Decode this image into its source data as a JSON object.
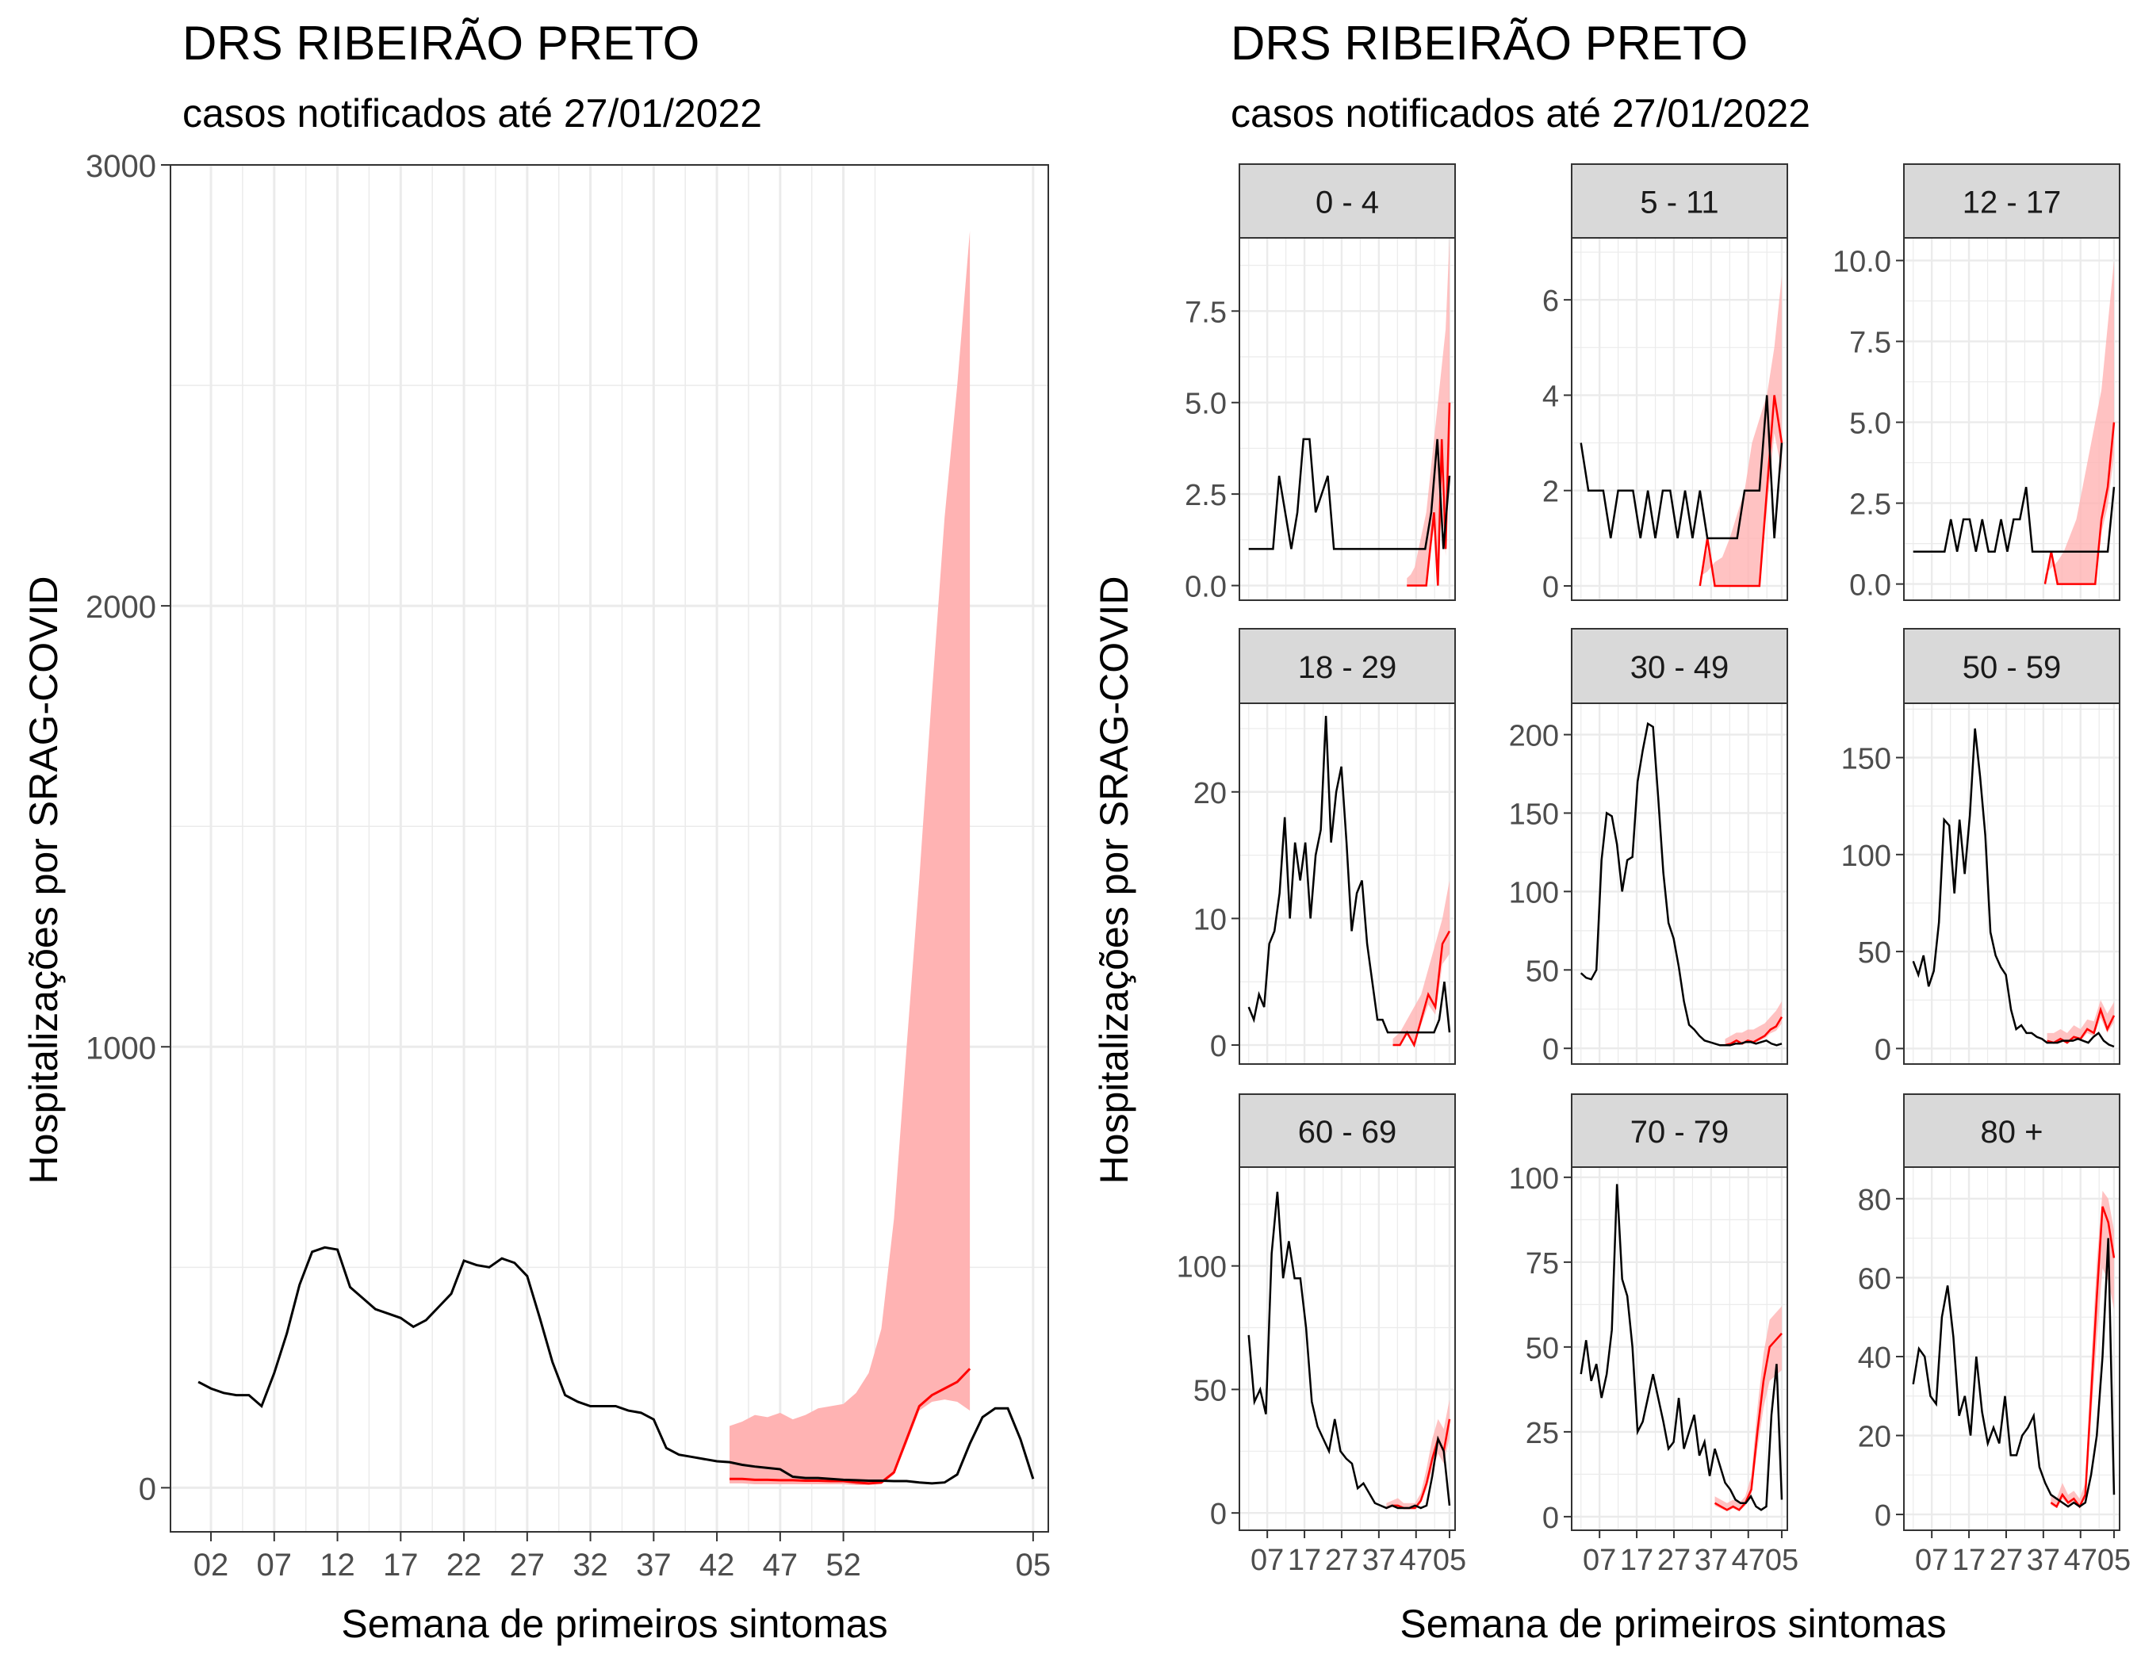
{
  "left": {
    "title": "DRS RIBEIRÃO PRETO",
    "subtitle": "casos notificados até 27/01/2022",
    "ylabel": "Hospitalizações por SRAG-COVID",
    "xlabel": "Semana de primeiros sintomas"
  },
  "right": {
    "title": "DRS RIBEIRÃO PRETO",
    "subtitle": "casos notificados até 27/01/2022",
    "ylabel": "Hospitalizações por SRAG-COVID",
    "xlabel": "Semana de primeiros sintomas"
  },
  "colors": {
    "observed": "#000000",
    "estimate": "#ff0000",
    "band": "#ffb3b3",
    "strip": "#d9d9d9",
    "grid": "#ebebeb"
  },
  "chart_data": [
    {
      "type": "line",
      "title": "DRS RIBEIRÃO PRETO",
      "subtitle": "casos notificados até 27/01/2022",
      "xlabel": "Semana de primeiros sintomas",
      "ylabel": "Hospitalizações por SRAG-COVID",
      "x_tick_labels": [
        "02",
        "07",
        "12",
        "17",
        "22",
        "27",
        "32",
        "37",
        "42",
        "47",
        "52",
        "05"
      ],
      "ylim": [
        -100,
        3000
      ],
      "yticks": [
        0,
        1000,
        2000,
        3000
      ],
      "grid": true,
      "series": [
        {
          "role": "observed",
          "values": [
            240,
            225,
            215,
            210,
            210,
            185,
            260,
            350,
            460,
            535,
            545,
            540,
            455,
            430,
            405,
            395,
            385,
            365,
            380,
            410,
            440,
            515,
            505,
            500,
            520,
            510,
            480,
            385,
            285,
            210,
            195,
            185,
            185,
            185,
            175,
            170,
            155,
            90,
            75,
            70,
            65,
            60,
            58,
            52,
            48,
            45,
            42,
            25,
            22,
            22,
            20,
            18,
            17,
            16,
            16,
            15,
            15,
            12,
            10,
            12,
            30,
            100,
            160,
            180,
            180,
            110,
            20
          ]
        },
        {
          "role": "estimate",
          "start_index": 42,
          "values": [
            20,
            20,
            18,
            18,
            17,
            17,
            16,
            16,
            15,
            15,
            12,
            10,
            12,
            35,
            110,
            185,
            210,
            225,
            240,
            270
          ]
        },
        {
          "role": "band_upper",
          "start_index": 42,
          "values": [
            140,
            150,
            165,
            160,
            170,
            155,
            165,
            180,
            185,
            190,
            215,
            260,
            360,
            610,
            1000,
            1380,
            1800,
            2200,
            2500,
            2850
          ]
        },
        {
          "role": "band_lower",
          "start_index": 42,
          "values": [
            10,
            10,
            8,
            8,
            8,
            8,
            8,
            8,
            8,
            8,
            6,
            6,
            8,
            30,
            100,
            175,
            195,
            200,
            195,
            175
          ]
        }
      ]
    },
    {
      "type": "line",
      "facets": [
        {
          "label": "0 - 4",
          "ylim": [
            -0.4,
            9.5
          ],
          "yticks": [
            0.0,
            2.5,
            5.0,
            7.5
          ],
          "ytick_labels": [
            "0.0",
            "2.5",
            "5.0",
            "7.5"
          ],
          "observed": [
            1,
            1,
            1,
            1,
            1,
            3,
            2,
            1,
            2,
            4,
            4,
            2,
            2.5,
            3,
            1,
            1,
            1,
            1,
            1,
            1,
            1,
            1,
            1,
            1,
            1,
            1,
            1,
            1,
            1,
            1,
            2,
            4,
            1,
            3
          ],
          "estimate_start": 26,
          "estimate": [
            0,
            0,
            0,
            0,
            0,
            0,
            1,
            2,
            0,
            4,
            1,
            5
          ],
          "band_upper": [
            0.2,
            0.3,
            0.5,
            1,
            1.5,
            2,
            3,
            4,
            5,
            6,
            7,
            9.5
          ]
        },
        {
          "label": "5 - 11",
          "ylim": [
            -0.3,
            7.3
          ],
          "yticks": [
            0,
            2,
            4,
            6
          ],
          "ytick_labels": [
            "0",
            "2",
            "4",
            "6"
          ],
          "observed": [
            3,
            2,
            2,
            2,
            1,
            2,
            2,
            2,
            1,
            2,
            1,
            2,
            2,
            1,
            2,
            1,
            2,
            1,
            1,
            1,
            1,
            1,
            2,
            2,
            2,
            4,
            1,
            3
          ],
          "estimate_start": 16,
          "estimate": [
            0,
            1,
            0,
            0,
            0,
            0,
            0,
            0,
            0,
            2,
            4,
            3
          ],
          "band_upper": [
            0.2,
            0.3,
            0.5,
            0.6,
            1,
            1.5,
            2,
            3,
            3.5,
            4,
            5,
            6.5
          ]
        },
        {
          "label": "12 - 17",
          "ylim": [
            -0.5,
            10.7
          ],
          "yticks": [
            0.0,
            2.5,
            5.0,
            7.5,
            10.0
          ],
          "ytick_labels": [
            "0.0",
            "2.5",
            "5.0",
            "7.5",
            "10.0"
          ],
          "observed": [
            1,
            1,
            1,
            1,
            1,
            1,
            2,
            1,
            2,
            2,
            1,
            2,
            1,
            1,
            2,
            1,
            2,
            2,
            3,
            1,
            1,
            1,
            1,
            1,
            1,
            1,
            1,
            1,
            1,
            1,
            1,
            1,
            3
          ],
          "estimate_start": 21,
          "estimate": [
            0,
            1,
            0,
            0,
            0,
            0,
            0,
            0,
            0,
            2,
            3,
            5
          ],
          "band_upper": [
            0.3,
            0.5,
            0.7,
            1,
            1.5,
            2,
            3,
            4,
            5,
            6,
            8,
            10
          ]
        },
        {
          "label": "18 - 29",
          "ylim": [
            -1.5,
            27
          ],
          "yticks": [
            0,
            10,
            20
          ],
          "ytick_labels": [
            "0",
            "10",
            "20"
          ],
          "observed": [
            3,
            2,
            4,
            3,
            8,
            9,
            12,
            18,
            10,
            16,
            13,
            16,
            10,
            15,
            17,
            26,
            16,
            20,
            22,
            16,
            9,
            12,
            13,
            8,
            5,
            2,
            2,
            1,
            1,
            1,
            1,
            1,
            1,
            1,
            1,
            1,
            1,
            2,
            5,
            1
          ],
          "estimate_start": 28,
          "estimate": [
            0,
            0,
            1,
            0,
            2,
            4,
            3,
            8,
            9
          ],
          "band_upper": [
            0.5,
            1,
            2,
            3,
            4,
            6,
            8,
            10,
            13
          ]
        },
        {
          "label": "30 - 49",
          "ylim": [
            -10,
            220
          ],
          "yticks": [
            0,
            50,
            100,
            150,
            200
          ],
          "ytick_labels": [
            "0",
            "50",
            "100",
            "150",
            "200"
          ],
          "observed": [
            48,
            45,
            44,
            50,
            120,
            150,
            148,
            130,
            100,
            120,
            122,
            170,
            190,
            207,
            205,
            160,
            112,
            80,
            70,
            52,
            30,
            15,
            12,
            8,
            5,
            4,
            3,
            2,
            2,
            2,
            3,
            3,
            4,
            4,
            3,
            4,
            5,
            3,
            2,
            3
          ],
          "estimate_start": 28,
          "estimate": [
            2,
            3,
            5,
            3,
            5,
            4,
            6,
            8,
            12,
            14,
            20
          ],
          "band_upper": [
            6,
            8,
            10,
            10,
            12,
            12,
            14,
            16,
            20,
            24,
            30
          ]
        },
        {
          "label": "50 - 59",
          "ylim": [
            -8,
            178
          ],
          "yticks": [
            0,
            50,
            100,
            150
          ],
          "ytick_labels": [
            "0",
            "50",
            "100",
            "150"
          ],
          "observed": [
            45,
            38,
            48,
            32,
            40,
            65,
            118,
            115,
            80,
            118,
            90,
            120,
            165,
            140,
            110,
            60,
            48,
            42,
            38,
            20,
            10,
            12,
            8,
            8,
            6,
            5,
            3,
            3,
            3,
            4,
            4,
            4,
            5,
            4,
            3,
            6,
            8,
            4,
            2,
            1
          ],
          "estimate_start": 26,
          "estimate": [
            4,
            3,
            5,
            3,
            6,
            5,
            10,
            8,
            20,
            10,
            17
          ],
          "band_upper": [
            8,
            8,
            10,
            8,
            12,
            10,
            15,
            14,
            25,
            18,
            24
          ]
        },
        {
          "label": "60 - 69",
          "ylim": [
            -7,
            140
          ],
          "yticks": [
            0,
            50,
            100
          ],
          "ytick_labels": [
            "0",
            "50",
            "100"
          ],
          "observed": [
            72,
            45,
            50,
            40,
            105,
            130,
            95,
            110,
            95,
            95,
            75,
            45,
            35,
            30,
            25,
            38,
            25,
            22,
            20,
            10,
            12,
            8,
            4,
            3,
            2,
            3,
            2,
            2,
            2,
            3,
            2,
            3,
            15,
            30,
            25,
            3
          ],
          "estimate_start": 24,
          "estimate": [
            2,
            3,
            3,
            2,
            2,
            2,
            5,
            12,
            22,
            30,
            25,
            38
          ],
          "band_upper": [
            4,
            5,
            6,
            4,
            4,
            4,
            8,
            18,
            30,
            38,
            34,
            46
          ]
        },
        {
          "label": "70 - 79",
          "ylim": [
            -4,
            103
          ],
          "yticks": [
            0,
            25,
            50,
            75,
            100
          ],
          "ytick_labels": [
            "0",
            "25",
            "50",
            "75",
            "100"
          ],
          "observed": [
            42,
            52,
            40,
            45,
            35,
            42,
            55,
            98,
            70,
            65,
            50,
            25,
            28,
            35,
            42,
            35,
            28,
            20,
            22,
            35,
            20,
            25,
            30,
            18,
            22,
            12,
            20,
            15,
            10,
            8,
            5,
            4,
            4,
            6,
            3,
            2,
            3,
            30,
            45,
            5
          ],
          "estimate_start": 26,
          "estimate": [
            4,
            3,
            2,
            3,
            2,
            4,
            8,
            25,
            40,
            50,
            52,
            54
          ],
          "band_upper": [
            6,
            5,
            4,
            5,
            4,
            6,
            12,
            32,
            48,
            58,
            60,
            62
          ]
        },
        {
          "label": "80 +",
          "ylim": [
            -4,
            88
          ],
          "yticks": [
            0,
            20,
            40,
            60,
            80
          ],
          "ytick_labels": [
            "0",
            "20",
            "40",
            "60",
            "80"
          ],
          "observed": [
            33,
            42,
            40,
            30,
            28,
            50,
            58,
            45,
            25,
            30,
            20,
            40,
            26,
            18,
            22,
            18,
            30,
            15,
            15,
            20,
            22,
            25,
            12,
            8,
            5,
            4,
            3,
            2,
            3,
            2,
            3,
            10,
            20,
            40,
            70,
            5
          ],
          "estimate_start": 24,
          "estimate": [
            3,
            2,
            5,
            3,
            4,
            2,
            5,
            30,
            55,
            78,
            74,
            65
          ],
          "band_upper": [
            5,
            4,
            8,
            5,
            6,
            4,
            8,
            38,
            64,
            82,
            80,
            72
          ]
        }
      ],
      "x_tick_labels": [
        "07",
        "17",
        "27",
        "37",
        "47",
        "05"
      ],
      "xlabel": "Semana de primeiros sintomas",
      "ylabel": "Hospitalizações por SRAG-COVID"
    }
  ]
}
